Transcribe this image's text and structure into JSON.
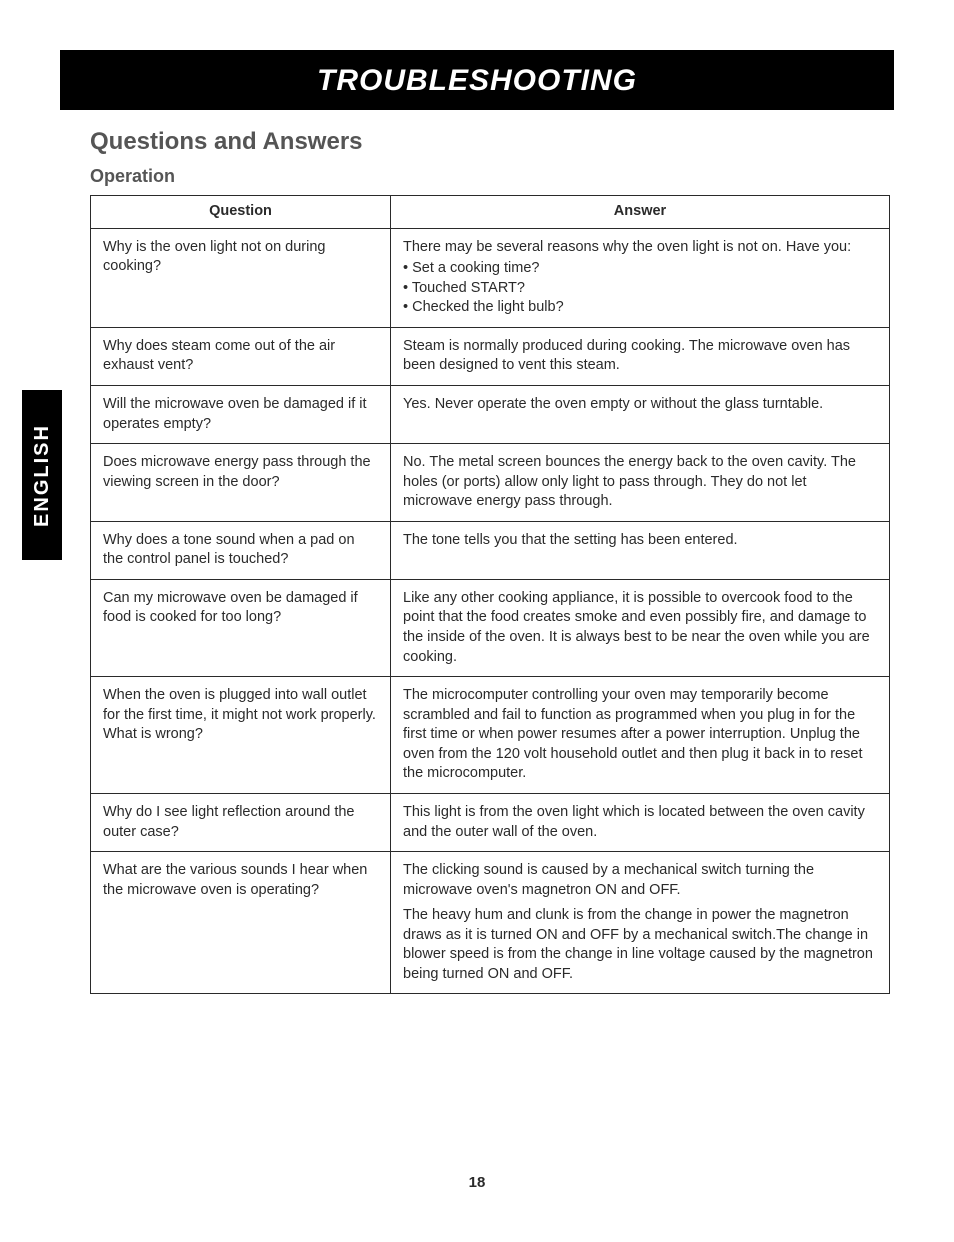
{
  "banner": {
    "title": "TROUBLESHOOTING"
  },
  "section": {
    "title": "Questions and Answers"
  },
  "subsection": {
    "title": "Operation"
  },
  "side_tab": {
    "label": "ENGLISH"
  },
  "table": {
    "headers": {
      "question": "Question",
      "answer": "Answer"
    },
    "rows": [
      {
        "q": "Why is the oven light not on during cooking?",
        "a_intro": "There may be several reasons why the oven light is not on. Have you:",
        "a_bullets": [
          "Set a cooking time?",
          "Touched START?",
          "Checked the light bulb?"
        ]
      },
      {
        "q": "Why does steam come out of the air exhaust vent?",
        "a": "Steam is normally produced during cooking. The microwave oven has been designed to vent this steam."
      },
      {
        "q": "Will the microwave oven be damaged if it operates empty?",
        "a": "Yes. Never operate the oven empty or without the glass turntable."
      },
      {
        "q": "Does microwave energy pass through the viewing screen in the door?",
        "a": "No. The metal screen bounces the energy back to the oven cavity. The holes (or ports) allow only light to pass through. They do not let microwave energy pass through."
      },
      {
        "q": "Why does a tone sound when a pad on the control panel is touched?",
        "a": "The tone tells you that the setting has been entered."
      },
      {
        "q": "Can my microwave oven be damaged if food is cooked for too long?",
        "a": "Like any other cooking appliance, it is possible to overcook food to the point that the food creates smoke and even possibly fire, and damage to the inside of the oven. It is always best to be near the oven while you are cooking."
      },
      {
        "q": "When the oven is plugged into wall outlet for the first time, it might not work properly. What is wrong?",
        "a": "The microcomputer controlling your oven may temporarily become scrambled and fail to function as programmed when you plug in for the first time or when power resumes after a power interruption. Unplug the oven from the 120 volt household outlet and then plug it back in to reset the microcomputer."
      },
      {
        "q": "Why do I see light reflection around the outer case?",
        "a": "This light is from the oven light which is located between the oven cavity and the outer wall of the oven."
      },
      {
        "q": "What are the various sounds I hear when the microwave oven is operating?",
        "a_paras": [
          "The clicking sound is caused by a mechanical switch turning the microwave oven's magnetron ON and OFF.",
          "The heavy hum and clunk is from the change in power the magnetron draws as it is turned ON and OFF by a mechanical switch.The change in blower speed is from the change in line voltage caused by the magnetron being turned ON and OFF."
        ]
      }
    ]
  },
  "page_number": "18"
}
